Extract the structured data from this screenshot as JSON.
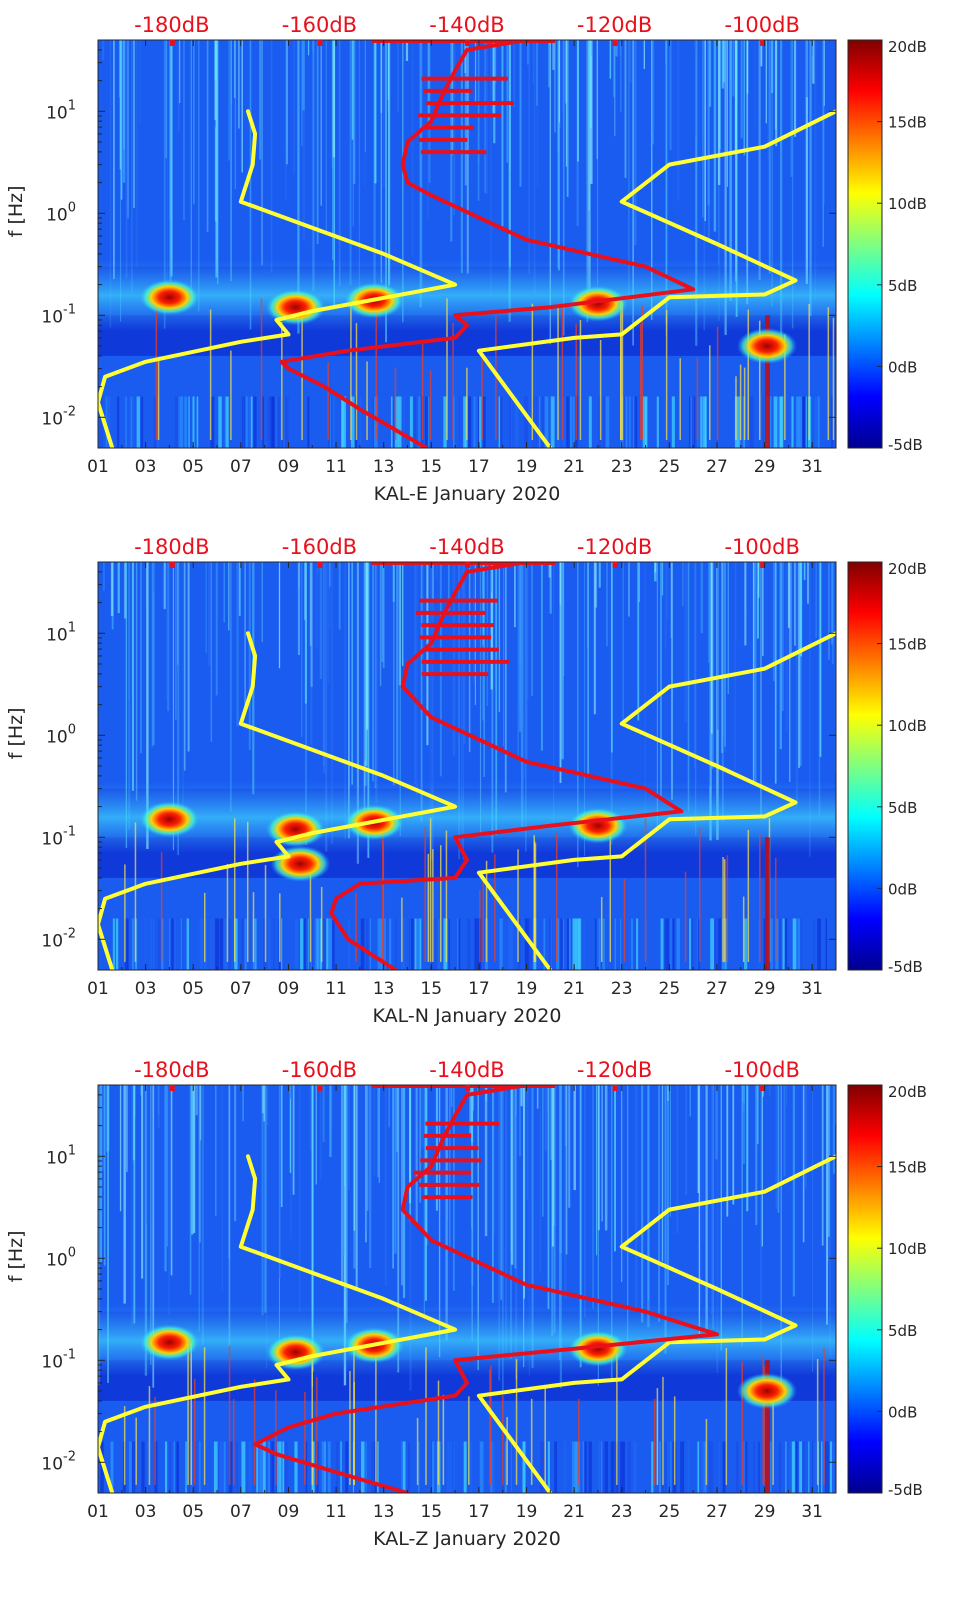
{
  "chart_data": [
    {
      "type": "heatmap",
      "station": "KAL-E",
      "xlabel": "KAL-E January 2020",
      "ylabel": "f [Hz]",
      "xlim": [
        1,
        32
      ],
      "ylim_hz": [
        0.005,
        50
      ],
      "x_ticks": [
        "01",
        "03",
        "05",
        "07",
        "09",
        "11",
        "13",
        "15",
        "17",
        "19",
        "21",
        "23",
        "25",
        "27",
        "29",
        "31"
      ],
      "y_ticks": [
        {
          "value": 0.01,
          "base": "10",
          "exp": "-2"
        },
        {
          "value": 0.1,
          "base": "10",
          "exp": "-1"
        },
        {
          "value": 1,
          "base": "10",
          "exp": "0"
        },
        {
          "value": 10,
          "base": "10",
          "exp": "1"
        }
      ],
      "top_axis_labels": [
        {
          "label": "-180dB",
          "value": -180
        },
        {
          "label": "-160dB",
          "value": -160
        },
        {
          "label": "-140dB",
          "value": -140
        },
        {
          "label": "-120dB",
          "value": -120
        },
        {
          "label": "-100dB",
          "value": -100
        }
      ],
      "colorbar": {
        "range_db": [
          -5,
          20
        ],
        "ticks": [
          "20dB",
          "15dB",
          "10dB",
          "5dB",
          "0dB",
          "-5dB"
        ]
      },
      "hotspots": [
        {
          "day": 4,
          "freq": 0.15
        },
        {
          "day": 9.3,
          "freq": 0.12
        },
        {
          "day": 12.6,
          "freq": 0.14
        },
        {
          "day": 22,
          "freq": 0.13
        },
        {
          "day": 29.1,
          "freq": 0.05
        }
      ],
      "series": [
        {
          "name": "yellow left model",
          "color": "#ffff33",
          "points": [
            [
              1.6,
              0.005
            ],
            [
              1,
              0.014
            ],
            [
              1.3,
              0.025
            ],
            [
              3,
              0.035
            ],
            [
              7,
              0.055
            ],
            [
              9,
              0.065
            ],
            [
              8.5,
              0.09
            ],
            [
              10,
              0.11
            ],
            [
              16,
              0.2
            ],
            [
              13,
              0.4
            ],
            [
              7,
              1.3
            ],
            [
              7.5,
              3
            ],
            [
              7.6,
              6
            ],
            [
              7.3,
              10
            ]
          ]
        },
        {
          "name": "yellow right model",
          "color": "#ffff33",
          "points": [
            [
              20,
              0.005
            ],
            [
              17,
              0.045
            ],
            [
              21,
              0.06
            ],
            [
              23,
              0.065
            ],
            [
              25,
              0.15
            ],
            [
              29,
              0.16
            ],
            [
              30.3,
              0.22
            ],
            [
              27,
              0.5
            ],
            [
              23,
              1.3
            ],
            [
              25,
              3
            ],
            [
              29,
              4.5
            ],
            [
              32,
              10
            ]
          ]
        },
        {
          "name": "red median noise",
          "color": "#e8101c",
          "points": [
            [
              14.8,
              0.005
            ],
            [
              12,
              0.012
            ],
            [
              10.5,
              0.02
            ],
            [
              9,
              0.03
            ],
            [
              8.7,
              0.035
            ],
            [
              11.5,
              0.045
            ],
            [
              16,
              0.06
            ],
            [
              16.5,
              0.08
            ],
            [
              16,
              0.1
            ],
            [
              20,
              0.12
            ],
            [
              26,
              0.18
            ],
            [
              24,
              0.3
            ],
            [
              19,
              0.55
            ],
            [
              15,
              1.5
            ],
            [
              14,
              2
            ],
            [
              13.8,
              3
            ],
            [
              14,
              5
            ],
            [
              15,
              8
            ],
            [
              15.5,
              15
            ],
            [
              16,
              25
            ],
            [
              16.5,
              40
            ],
            [
              19,
              50
            ]
          ]
        }
      ]
    },
    {
      "type": "heatmap",
      "station": "KAL-N",
      "xlabel": "KAL-N January 2020",
      "ylabel": "f [Hz]",
      "xlim": [
        1,
        32
      ],
      "ylim_hz": [
        0.005,
        50
      ],
      "x_ticks": [
        "01",
        "03",
        "05",
        "07",
        "09",
        "11",
        "13",
        "15",
        "17",
        "19",
        "21",
        "23",
        "25",
        "27",
        "29",
        "31"
      ],
      "y_ticks": [
        {
          "value": 0.01,
          "base": "10",
          "exp": "-2"
        },
        {
          "value": 0.1,
          "base": "10",
          "exp": "-1"
        },
        {
          "value": 1,
          "base": "10",
          "exp": "0"
        },
        {
          "value": 10,
          "base": "10",
          "exp": "1"
        }
      ],
      "top_axis_labels": [
        {
          "label": "-180dB",
          "value": -180
        },
        {
          "label": "-160dB",
          "value": -160
        },
        {
          "label": "-140dB",
          "value": -140
        },
        {
          "label": "-120dB",
          "value": -120
        },
        {
          "label": "-100dB",
          "value": -100
        }
      ],
      "colorbar": {
        "range_db": [
          -5,
          20
        ],
        "ticks": [
          "20dB",
          "15dB",
          "10dB",
          "5dB",
          "0dB",
          "-5dB"
        ]
      },
      "hotspots": [
        {
          "day": 4,
          "freq": 0.15
        },
        {
          "day": 9.3,
          "freq": 0.12
        },
        {
          "day": 12.6,
          "freq": 0.14
        },
        {
          "day": 22,
          "freq": 0.13
        },
        {
          "day": 9.5,
          "freq": 0.055
        }
      ],
      "series": [
        {
          "name": "yellow left model",
          "color": "#ffff33",
          "points": [
            [
              1.6,
              0.005
            ],
            [
              1,
              0.014
            ],
            [
              1.3,
              0.025
            ],
            [
              3,
              0.035
            ],
            [
              7,
              0.055
            ],
            [
              9,
              0.065
            ],
            [
              8.5,
              0.09
            ],
            [
              10,
              0.11
            ],
            [
              16,
              0.2
            ],
            [
              13,
              0.4
            ],
            [
              7,
              1.3
            ],
            [
              7.5,
              3
            ],
            [
              7.6,
              6
            ],
            [
              7.3,
              10
            ]
          ]
        },
        {
          "name": "yellow right model",
          "color": "#ffff33",
          "points": [
            [
              20,
              0.005
            ],
            [
              17,
              0.045
            ],
            [
              21,
              0.06
            ],
            [
              23,
              0.065
            ],
            [
              25,
              0.15
            ],
            [
              29,
              0.16
            ],
            [
              30.3,
              0.22
            ],
            [
              27,
              0.5
            ],
            [
              23,
              1.3
            ],
            [
              25,
              3
            ],
            [
              29,
              4.5
            ],
            [
              32,
              10
            ]
          ]
        },
        {
          "name": "red median noise",
          "color": "#e8101c",
          "points": [
            [
              13.5,
              0.005
            ],
            [
              11.5,
              0.01
            ],
            [
              10.8,
              0.018
            ],
            [
              11,
              0.025
            ],
            [
              12,
              0.035
            ],
            [
              16,
              0.04
            ],
            [
              16.5,
              0.06
            ],
            [
              16,
              0.1
            ],
            [
              20,
              0.13
            ],
            [
              25.5,
              0.18
            ],
            [
              24,
              0.3
            ],
            [
              19,
              0.55
            ],
            [
              15,
              1.5
            ],
            [
              14.5,
              2
            ],
            [
              13.8,
              3
            ],
            [
              14,
              5
            ],
            [
              15,
              8
            ],
            [
              15.5,
              15
            ],
            [
              16,
              25
            ],
            [
              16.5,
              40
            ],
            [
              19,
              50
            ]
          ]
        }
      ]
    },
    {
      "type": "heatmap",
      "station": "KAL-Z",
      "xlabel": "KAL-Z January 2020",
      "ylabel": "f [Hz]",
      "xlim": [
        1,
        32
      ],
      "ylim_hz": [
        0.005,
        50
      ],
      "x_ticks": [
        "01",
        "03",
        "05",
        "07",
        "09",
        "11",
        "13",
        "15",
        "17",
        "19",
        "21",
        "23",
        "25",
        "27",
        "29",
        "31"
      ],
      "y_ticks": [
        {
          "value": 0.01,
          "base": "10",
          "exp": "-2"
        },
        {
          "value": 0.1,
          "base": "10",
          "exp": "-1"
        },
        {
          "value": 1,
          "base": "10",
          "exp": "0"
        },
        {
          "value": 10,
          "base": "10",
          "exp": "1"
        }
      ],
      "top_axis_labels": [
        {
          "label": "-180dB",
          "value": -180
        },
        {
          "label": "-160dB",
          "value": -160
        },
        {
          "label": "-140dB",
          "value": -140
        },
        {
          "label": "-120dB",
          "value": -120
        },
        {
          "label": "-100dB",
          "value": -100
        }
      ],
      "colorbar": {
        "range_db": [
          -5,
          20
        ],
        "ticks": [
          "20dB",
          "15dB",
          "10dB",
          "5dB",
          "0dB",
          "-5dB"
        ]
      },
      "hotspots": [
        {
          "day": 4,
          "freq": 0.15
        },
        {
          "day": 9.3,
          "freq": 0.12
        },
        {
          "day": 12.6,
          "freq": 0.14
        },
        {
          "day": 22,
          "freq": 0.13
        },
        {
          "day": 29.1,
          "freq": 0.05
        }
      ],
      "series": [
        {
          "name": "yellow left model",
          "color": "#ffff33",
          "points": [
            [
              1.6,
              0.005
            ],
            [
              1,
              0.014
            ],
            [
              1.3,
              0.025
            ],
            [
              3,
              0.035
            ],
            [
              7,
              0.055
            ],
            [
              9,
              0.065
            ],
            [
              8.5,
              0.09
            ],
            [
              10,
              0.11
            ],
            [
              16,
              0.2
            ],
            [
              13,
              0.4
            ],
            [
              7,
              1.3
            ],
            [
              7.5,
              3
            ],
            [
              7.6,
              6
            ],
            [
              7.3,
              10
            ]
          ]
        },
        {
          "name": "yellow right model",
          "color": "#ffff33",
          "points": [
            [
              20,
              0.005
            ],
            [
              17,
              0.045
            ],
            [
              21,
              0.06
            ],
            [
              23,
              0.065
            ],
            [
              25,
              0.15
            ],
            [
              29,
              0.16
            ],
            [
              30.3,
              0.22
            ],
            [
              27,
              0.5
            ],
            [
              23,
              1.3
            ],
            [
              25,
              3
            ],
            [
              29,
              4.5
            ],
            [
              32,
              10
            ]
          ]
        },
        {
          "name": "red median noise",
          "color": "#e8101c",
          "points": [
            [
              14,
              0.005
            ],
            [
              11,
              0.008
            ],
            [
              8.5,
              0.012
            ],
            [
              7.6,
              0.015
            ],
            [
              9,
              0.022
            ],
            [
              11,
              0.03
            ],
            [
              16,
              0.045
            ],
            [
              16.5,
              0.06
            ],
            [
              16,
              0.1
            ],
            [
              21,
              0.13
            ],
            [
              27,
              0.18
            ],
            [
              24,
              0.3
            ],
            [
              19,
              0.55
            ],
            [
              15,
              1.5
            ],
            [
              14.5,
              2
            ],
            [
              13.8,
              3
            ],
            [
              14,
              5
            ],
            [
              15,
              8
            ],
            [
              15.5,
              15
            ],
            [
              16,
              25
            ],
            [
              16.5,
              40
            ],
            [
              19,
              50
            ]
          ]
        }
      ]
    }
  ]
}
